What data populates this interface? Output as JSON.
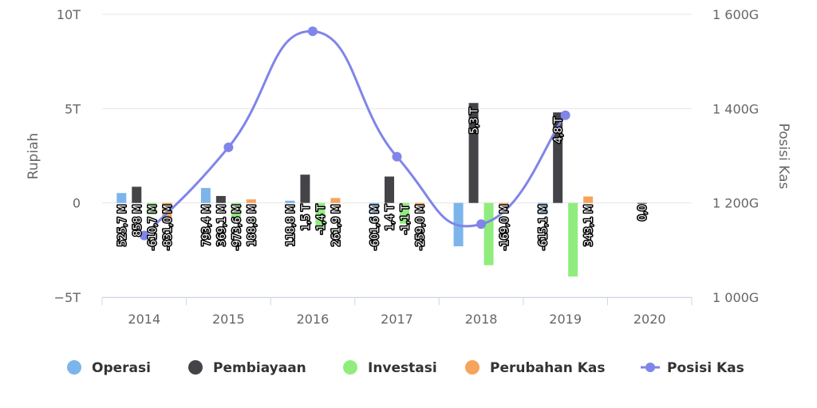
{
  "chart_data": {
    "type": "bar",
    "categories": [
      "2014",
      "2015",
      "2016",
      "2017",
      "2018",
      "2019",
      "2020"
    ],
    "y_left": {
      "label": "Rupiah",
      "ticks": [
        "10T",
        "5T",
        "0",
        "−5T"
      ],
      "tick_values": [
        10,
        5,
        0,
        -5
      ],
      "ylim": [
        -5,
        10
      ],
      "unit": "T"
    },
    "y_right": {
      "label": "Posisi Kas",
      "ticks": [
        "1 600G",
        "1 400G",
        "1 200G",
        "1 000G"
      ],
      "tick_values": [
        1600,
        1400,
        1200,
        1000
      ],
      "ylim": [
        1000,
        1600
      ],
      "unit": "G"
    },
    "grid": true,
    "legend_position": "bottom",
    "series": [
      {
        "name": "Operasi",
        "color": "#7cb5ec",
        "axis": "left",
        "values": [
          0.5257,
          0.7934,
          0.1188,
          -0.6016,
          -2.3,
          -0.6151,
          null
        ],
        "labels": [
          "525,7 M",
          "793,4 M",
          "118,8 M",
          "-601,6 M",
          "",
          "-615,1 M",
          ""
        ]
      },
      {
        "name": "Pembiayaan",
        "color": "#434348",
        "axis": "left",
        "values": [
          0.858,
          0.3691,
          1.5,
          1.4,
          5.3,
          4.8,
          0.0
        ],
        "labels": [
          "858 M",
          "369,1 M",
          "1,5 T",
          "1,4 T",
          "5,3 T",
          "4,8 T",
          "0,0"
        ]
      },
      {
        "name": "Investasi",
        "color": "#90ed7d",
        "axis": "left",
        "values": [
          -0.6107,
          -0.9736,
          -1.4,
          -1.1,
          -3.3,
          -3.9,
          null
        ],
        "labels": [
          "-610,7 M",
          "-973,6 M",
          "-1,4 T",
          "-1,1 T",
          "",
          "",
          ""
        ]
      },
      {
        "name": "Perubahan Kas",
        "color": "#f7a35c",
        "axis": "left",
        "values": [
          -0.831,
          0.1888,
          0.2619,
          -0.259,
          -0.169,
          0.3431,
          null
        ],
        "labels": [
          "-831,0 M",
          "188,8 M",
          "261,9 M",
          "-259,0 M",
          "-169,0 M",
          "343,1 M",
          ""
        ]
      },
      {
        "name": "Posisi Kas",
        "type": "line",
        "color": "#8085e9",
        "axis": "right",
        "values": [
          1131,
          1318,
          1564,
          1298,
          1155,
          1386,
          null
        ]
      }
    ]
  }
}
